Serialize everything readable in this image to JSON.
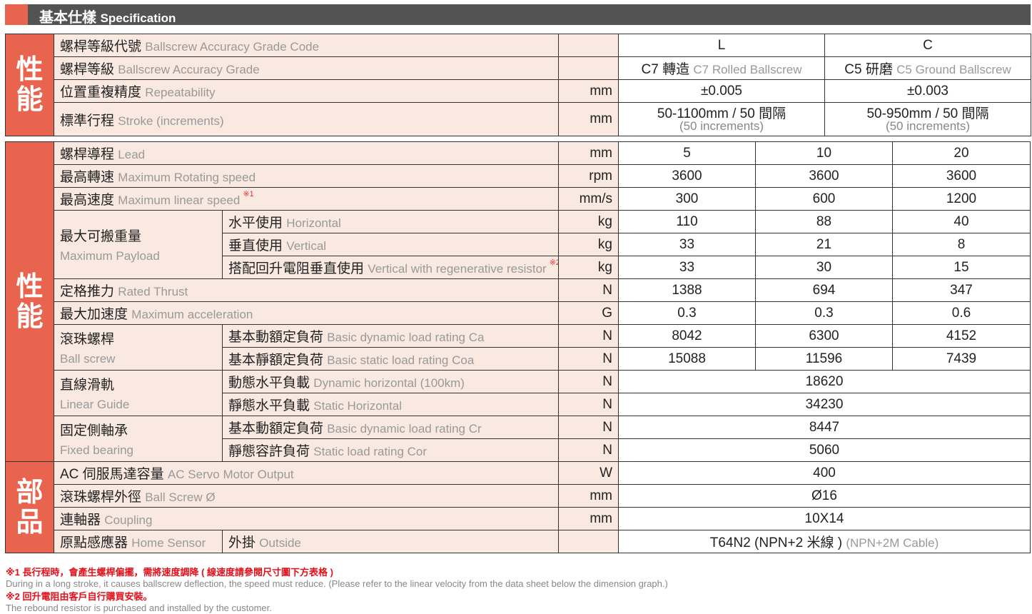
{
  "header": {
    "title_zh": "基本仕樣",
    "title_en": "Specification"
  },
  "colors": {
    "accent": "#e8644f",
    "label_bg": "#f9e9e1",
    "header_bg": "#545354",
    "note_red": "#e3101a"
  },
  "section1": {
    "side": "性能",
    "rows": [
      {
        "zh": "螺桿等級代號",
        "en": "Ballscrew Accuracy Grade Code",
        "unit": "",
        "values": [
          "L",
          "C"
        ]
      },
      {
        "zh": "螺桿等級",
        "en": "Ballscrew Accuracy Grade",
        "unit": "",
        "values": [
          "C7 轉造",
          "C5 研磨"
        ],
        "values_en": [
          "C7 Rolled Ballscrew",
          "C5 Ground Ballscrew"
        ]
      },
      {
        "zh": "位置重複精度",
        "en": "Repeatability",
        "unit": "mm",
        "values": [
          "±0.005",
          "±0.003"
        ]
      },
      {
        "zh": "標準行程",
        "en": "Stroke (increments)",
        "unit": "mm",
        "values": [
          "50-1100mm / 50 間隔",
          "50-950mm / 50 間隔"
        ],
        "values_sub": [
          "(50 increments)",
          "(50 increments)"
        ]
      }
    ]
  },
  "section2": {
    "side": "性能",
    "rows": [
      {
        "zh": "螺桿導程",
        "en": "Lead",
        "unit": "mm",
        "values": [
          "5",
          "10",
          "20"
        ]
      },
      {
        "zh": "最高轉速",
        "en": "Maximum Rotating speed",
        "unit": "rpm",
        "values": [
          "3600",
          "3600",
          "3600"
        ]
      },
      {
        "zh": "最高速度",
        "en": "Maximum linear speed",
        "note": "※1",
        "unit": "mm/s",
        "values": [
          "300",
          "600",
          "1200"
        ]
      },
      {
        "group_zh": "最大可搬重量",
        "group_en": "Maximum Payload",
        "items": [
          {
            "zh": "水平使用",
            "en": "Horizontal",
            "unit": "kg",
            "values": [
              "110",
              "88",
              "40"
            ]
          },
          {
            "zh": "垂直使用",
            "en": "Vertical",
            "unit": "kg",
            "values": [
              "33",
              "21",
              "8"
            ]
          },
          {
            "zh": "搭配回升電阻垂直使用",
            "en": "Vertical with regenerative resistor",
            "note": "※2",
            "unit": "kg",
            "values": [
              "33",
              "30",
              "15"
            ]
          }
        ]
      },
      {
        "zh": "定格推力",
        "en": "Rated Thrust",
        "unit": "N",
        "values": [
          "1388",
          "694",
          "347"
        ]
      },
      {
        "zh": "最大加速度",
        "en": "Maximum acceleration",
        "unit": "G",
        "values": [
          "0.3",
          "0.3",
          "0.6"
        ]
      },
      {
        "group_zh": "滾珠螺桿",
        "group_en": "Ball screw",
        "items": [
          {
            "zh": "基本動額定負荷",
            "en": "Basic dynamic load rating Ca",
            "unit": "N",
            "values": [
              "8042",
              "6300",
              "4152"
            ]
          },
          {
            "zh": "基本靜額定負荷",
            "en": "Basic static load rating Coa",
            "unit": "N",
            "values": [
              "15088",
              "11596",
              "7439"
            ]
          }
        ]
      },
      {
        "group_zh": "直線滑軌",
        "group_en": "Linear Guide",
        "items": [
          {
            "zh": "動態水平負載",
            "en": "Dynamic horizontal (100km)",
            "unit": "N",
            "values": [
              "18620"
            ]
          },
          {
            "zh": "靜態水平負載",
            "en": "Static Horizontal",
            "unit": "N",
            "values": [
              "34230"
            ]
          }
        ]
      },
      {
        "group_zh": "固定側軸承",
        "group_en": "Fixed bearing",
        "items": [
          {
            "zh": "基本動額定負荷",
            "en": "Basic dynamic load rating Cr",
            "unit": "N",
            "values": [
              "8447"
            ]
          },
          {
            "zh": "靜態容許負荷",
            "en": "Static load rating Cor",
            "unit": "N",
            "values": [
              "5060"
            ]
          }
        ]
      }
    ]
  },
  "section3": {
    "side": "部品",
    "rows": [
      {
        "zh": "AC 伺服馬達容量",
        "en": "AC Servo Motor Output",
        "unit": "W",
        "values": [
          "400"
        ]
      },
      {
        "zh": "滾珠螺桿外徑",
        "en": "Ball Screw Ø",
        "unit": "mm",
        "values": [
          "Ø16"
        ]
      },
      {
        "zh": "連軸器",
        "en": "Coupling",
        "unit": "mm",
        "values": [
          "10X14"
        ]
      },
      {
        "zh": "原點感應器",
        "en": "Home Sensor",
        "zh2": "外掛",
        "en2": "Outside",
        "unit": "",
        "values": [
          "T64N2 (NPN+2 米線 )"
        ],
        "values_en": [
          "(NPN+2M Cable)"
        ]
      }
    ]
  },
  "footnotes": [
    {
      "zh": "※1 長行程時，會產生螺桿偏擺，需將速度調降 ( 線速度請參閱尺寸圖下方表格 )",
      "en": "During in a long stroke, it causes ballscrew deflection, the speed must reduce. (Please refer to the linear velocity from the data sheet below the dimension graph.)"
    },
    {
      "zh": "※2 回升電阻由客戶自行購買安裝。",
      "en": "The rebound resistor is purchased and installed by the customer."
    }
  ]
}
